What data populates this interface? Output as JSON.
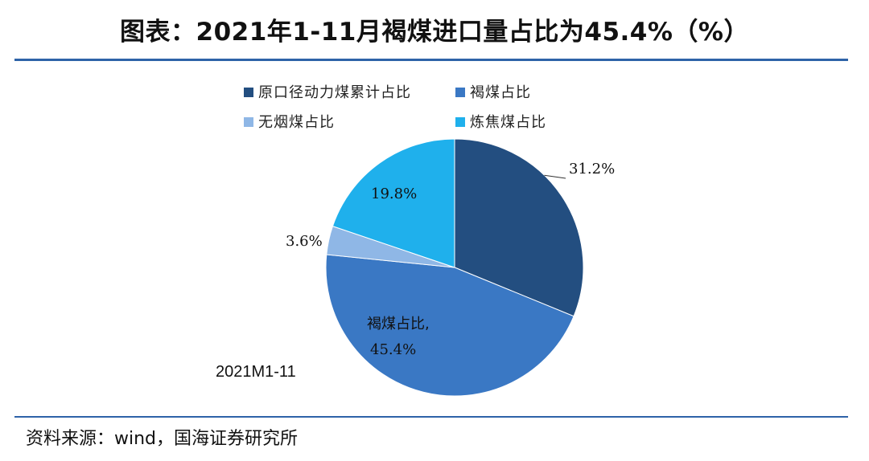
{
  "title": "图表：2021年1-11月褐煤进口量占比为45.4%（%）",
  "source": "资料来源：wind，国海证券研究所",
  "colors": {
    "rule": "#2e63a8"
  },
  "chart_data": {
    "type": "pie",
    "period_label": "2021M1-11",
    "legend_position": "top",
    "slices": [
      {
        "name": "原口径动力煤累计占比",
        "value": 31.2,
        "label": "31.2%",
        "color": "#234e80"
      },
      {
        "name": "褐煤占比",
        "value": 45.4,
        "label": "45.4%",
        "color": "#3a78c4",
        "inner_label": "褐煤占比,"
      },
      {
        "name": "无烟煤占比",
        "value": 3.6,
        "label": "3.6%",
        "color": "#8fb7e6"
      },
      {
        "name": "炼焦煤占比",
        "value": 19.8,
        "label": "19.8%",
        "color": "#1fb0ec"
      }
    ]
  }
}
